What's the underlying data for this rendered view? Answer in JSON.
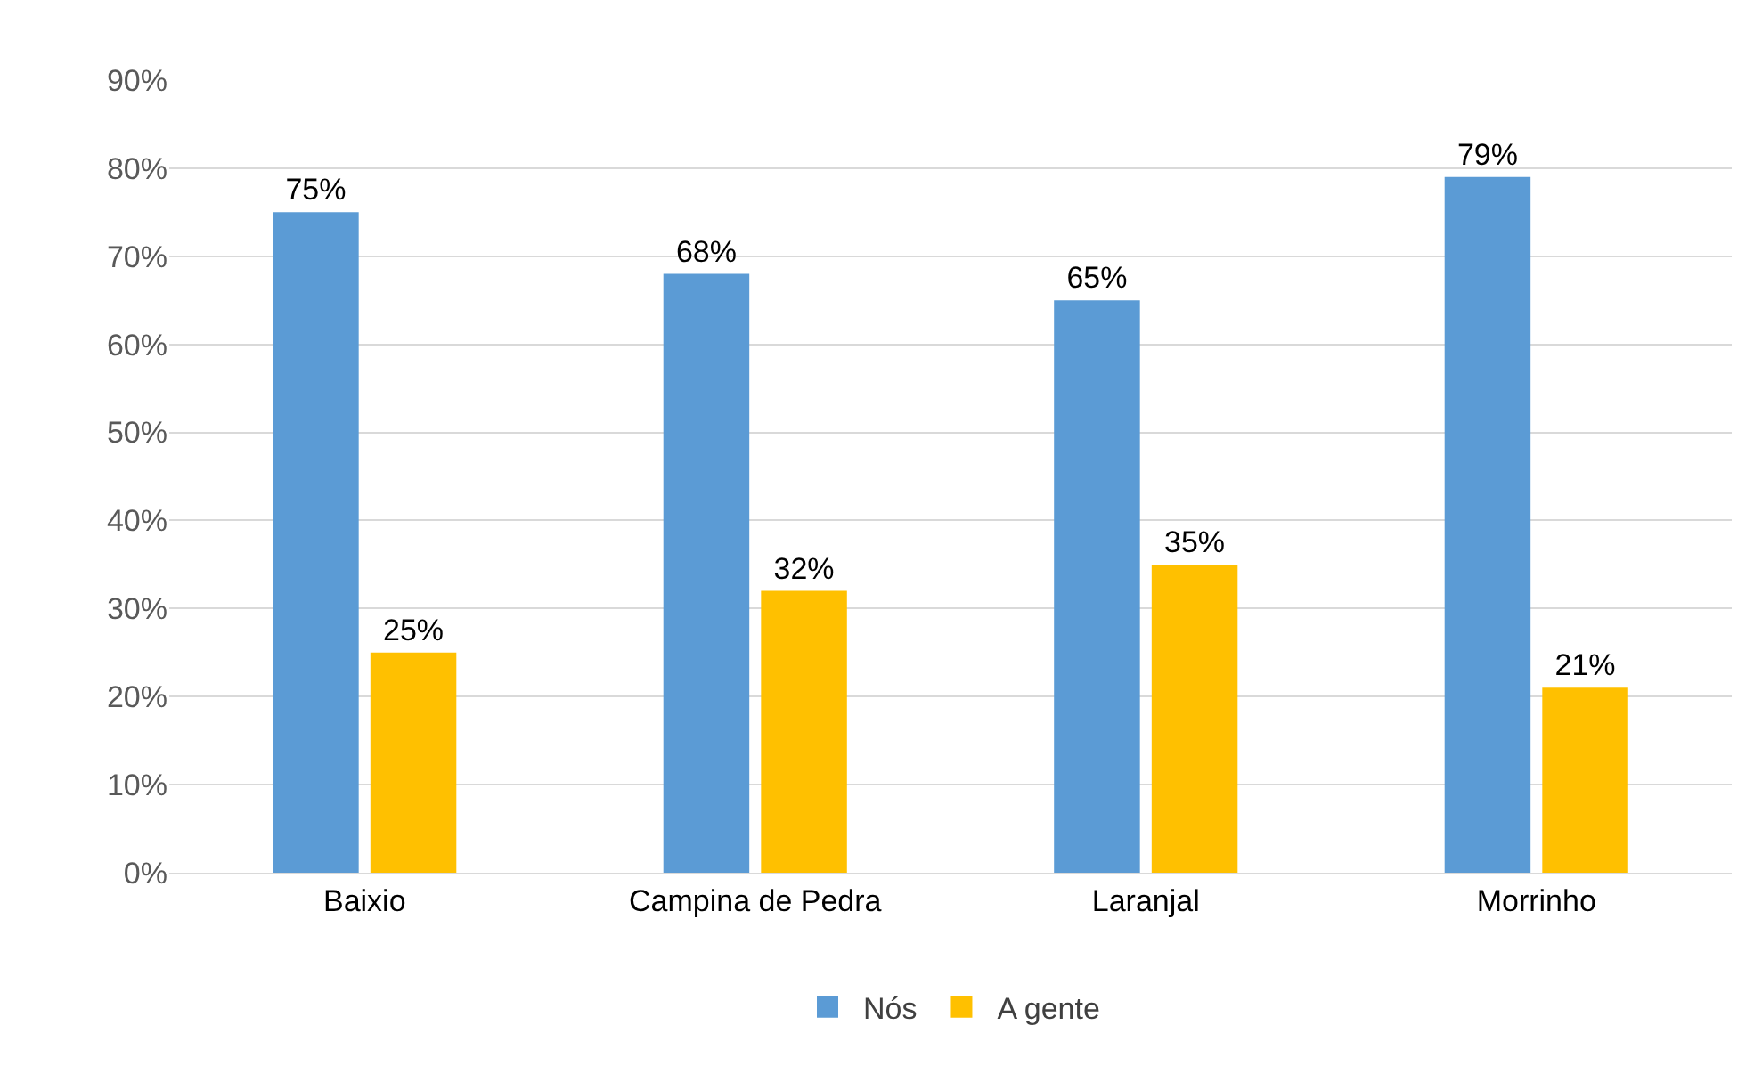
{
  "chart_data": {
    "type": "bar",
    "categories": [
      "Baixio",
      "Campina de Pedra",
      "Laranjal",
      "Morrinho"
    ],
    "series": [
      {
        "name": "Nós",
        "color": "#5b9bd5",
        "values": [
          75,
          68,
          65,
          79
        ],
        "value_labels": [
          "75%",
          "68%",
          "65%",
          "79%"
        ]
      },
      {
        "name": "A gente",
        "color": "#ffc000",
        "values": [
          25,
          32,
          35,
          21
        ],
        "value_labels": [
          "25%",
          "32%",
          "35%",
          "21%"
        ]
      }
    ],
    "ylim": [
      0,
      90
    ],
    "yticks": [
      {
        "value": 0,
        "label": "0%"
      },
      {
        "value": 10,
        "label": "10%"
      },
      {
        "value": 20,
        "label": "20%"
      },
      {
        "value": 30,
        "label": "30%"
      },
      {
        "value": 40,
        "label": "40%"
      },
      {
        "value": 50,
        "label": "50%"
      },
      {
        "value": 60,
        "label": "60%"
      },
      {
        "value": 70,
        "label": "70%"
      },
      {
        "value": 80,
        "label": "80%"
      },
      {
        "value": 90,
        "label": "90%"
      }
    ],
    "grid": "y",
    "legend": "bottom"
  }
}
